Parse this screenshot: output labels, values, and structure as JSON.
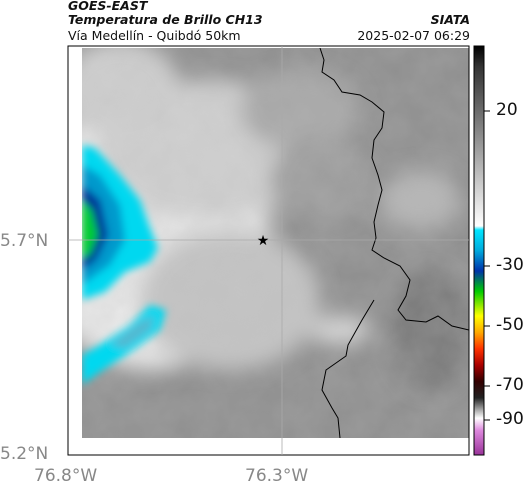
{
  "header": {
    "satellite": "GOES-EAST",
    "product": "Temperatura de Brillo CH13",
    "region": "Vía Medellín - Quibdó 50km",
    "agency": "SIATA",
    "timestamp": "2025-02-07 06:29"
  },
  "axes": {
    "lat_labels": [
      "5.7°N",
      "5.2°N"
    ],
    "lon_labels": [
      "76.8°W",
      "76.3°W"
    ]
  },
  "colorbar": {
    "labels": [
      "20",
      "-30",
      "-50",
      "-70",
      "-90"
    ],
    "colors": [
      "#000000",
      "#333333",
      "#666666",
      "#999999",
      "#cccccc",
      "#00bfff",
      "#0033aa",
      "#00cc00",
      "#ffff00",
      "#ff6600",
      "#cc0000",
      "#330000",
      "#dddddd",
      "#cc66cc"
    ]
  },
  "map": {
    "marker": "star-marker"
  }
}
